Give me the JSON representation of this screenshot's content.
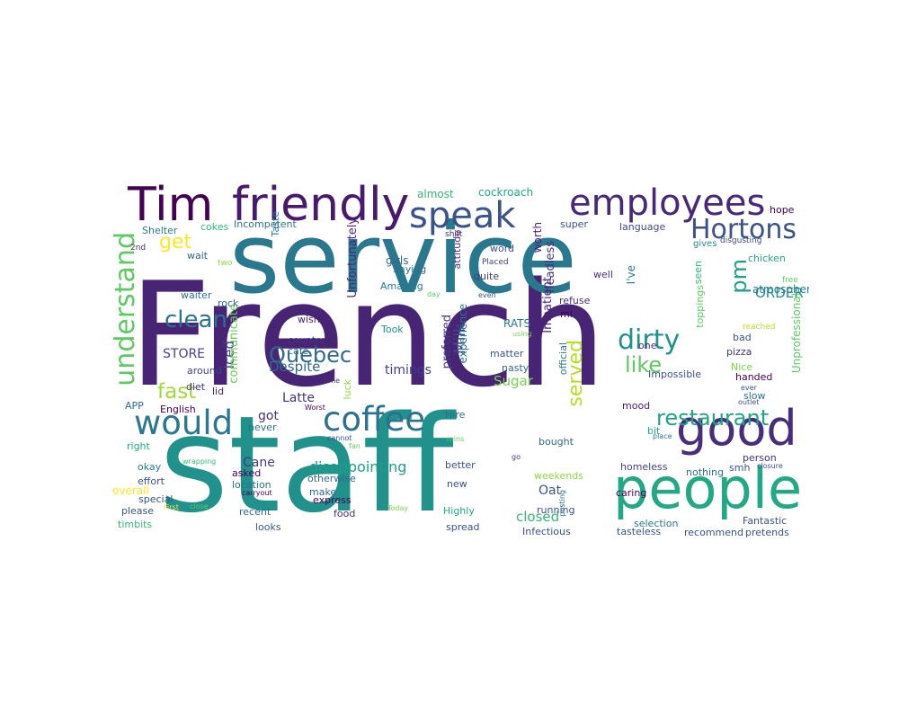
{
  "cloud": {
    "words": [
      {
        "text": "French",
        "color": "#482475"
      },
      {
        "text": "staff",
        "color": "#21918c"
      },
      {
        "text": "service",
        "color": "#2a788e"
      },
      {
        "text": "people",
        "color": "#22a884"
      },
      {
        "text": "Tim",
        "color": "#440154"
      },
      {
        "text": "friendly",
        "color": "#481a6c"
      },
      {
        "text": "good",
        "color": "#472d7b"
      },
      {
        "text": "employees",
        "color": "#482878"
      },
      {
        "text": "speak",
        "color": "#3b528b"
      },
      {
        "text": "coffee",
        "color": "#2c728e"
      },
      {
        "text": "would",
        "color": "#2a788e"
      },
      {
        "text": "Hortons",
        "color": "#3b528b"
      },
      {
        "text": "restaurant",
        "color": "#20a386"
      },
      {
        "text": "understand",
        "color": "#5ec962"
      },
      {
        "text": "dirty",
        "color": "#21918c"
      },
      {
        "text": "clean",
        "color": "#2c728e"
      },
      {
        "text": "Quebec",
        "color": "#31688e"
      },
      {
        "text": "like",
        "color": "#5ec962"
      },
      {
        "text": "fast",
        "color": "#a0da39"
      },
      {
        "text": "served",
        "color": "#b5de2b"
      },
      {
        "text": "get",
        "color": "#fde725"
      },
      {
        "text": "pm",
        "color": "#1fa187"
      },
      {
        "text": "disappointing",
        "color": "#1f9e89"
      },
      {
        "text": "ORDER",
        "color": "#21918c"
      },
      {
        "text": "Milk",
        "color": "#3e4989"
      },
      {
        "text": "Iced",
        "color": "#404688"
      },
      {
        "text": "STORE",
        "color": "#414487"
      },
      {
        "text": "Despite",
        "color": "#31688e"
      },
      {
        "text": "Sugar",
        "color": "#7ad151"
      },
      {
        "text": "timings",
        "color": "#433e85"
      },
      {
        "text": "Latte",
        "color": "#46327e"
      },
      {
        "text": "Oat",
        "color": "#3b528b"
      },
      {
        "text": "closed",
        "color": "#35b779"
      },
      {
        "text": "Cane",
        "color": "#453781"
      },
      {
        "text": "got",
        "color": "#46327e"
      },
      {
        "text": "atmosphere",
        "color": "#287c8e"
      },
      {
        "text": "Unprofessional",
        "color": "#5ec962"
      },
      {
        "text": "Unfortunately",
        "color": "#482878"
      },
      {
        "text": "communicate",
        "color": "#6ccd5a"
      },
      {
        "text": "preferred",
        "color": "#433e85"
      },
      {
        "text": "experience",
        "color": "#2c728e"
      },
      {
        "text": "Impatient",
        "color": "#482475"
      },
      {
        "text": "headless",
        "color": "#46337f"
      },
      {
        "text": "almost",
        "color": "#35b779"
      },
      {
        "text": "cockroach",
        "color": "#22a884"
      },
      {
        "text": "worth",
        "color": "#481f70"
      },
      {
        "text": "super",
        "color": "#3b528b"
      },
      {
        "text": "hope",
        "color": "#440154"
      },
      {
        "text": "Shelter",
        "color": "#2a788e"
      },
      {
        "text": "cokes",
        "color": "#35b779"
      },
      {
        "text": "Incompetent",
        "color": "#2c728e"
      },
      {
        "text": "attitude",
        "color": "#46327e"
      },
      {
        "text": "language",
        "color": "#3e4989"
      },
      {
        "text": "2nd",
        "color": "#472d7b"
      },
      {
        "text": "wait",
        "color": "#31688e"
      },
      {
        "text": "Taste",
        "color": "#2a788e"
      },
      {
        "text": "shift",
        "color": "#482878"
      },
      {
        "text": "word",
        "color": "#3b528b"
      },
      {
        "text": "gives",
        "color": "#25858e"
      },
      {
        "text": "disgusting",
        "color": "#3e4989"
      },
      {
        "text": "two",
        "color": "#90d743"
      },
      {
        "text": "girls",
        "color": "#31688e"
      },
      {
        "text": "Placed",
        "color": "#414487"
      },
      {
        "text": "seen",
        "color": "#35b779"
      },
      {
        "text": "chicken",
        "color": "#22a884"
      },
      {
        "text": "Saying",
        "color": "#2c728e"
      },
      {
        "text": "quite",
        "color": "#433e85"
      },
      {
        "text": "well",
        "color": "#472d7b"
      },
      {
        "text": "I've",
        "color": "#2a788e"
      },
      {
        "text": "free",
        "color": "#5ec962"
      },
      {
        "text": "waiter",
        "color": "#2c728e"
      },
      {
        "text": "Amazing",
        "color": "#2a788e"
      },
      {
        "text": "day",
        "color": "#5ec962"
      },
      {
        "text": "even",
        "color": "#3b528b"
      },
      {
        "text": "refuse",
        "color": "#46327e"
      },
      {
        "text": "rock",
        "color": "#31688e"
      },
      {
        "text": "ml",
        "color": "#440154"
      },
      {
        "text": "toppings",
        "color": "#5ec962"
      },
      {
        "text": "wish",
        "color": "#481a6c"
      },
      {
        "text": "RATS",
        "color": "#2a788e"
      },
      {
        "text": "reached",
        "color": "#b5de2b"
      },
      {
        "text": "Took",
        "color": "#21918c"
      },
      {
        "text": "using",
        "color": "#7ad151"
      },
      {
        "text": "one",
        "color": "#472d7b"
      },
      {
        "text": "bad",
        "color": "#3b528b"
      },
      {
        "text": "counter",
        "color": "#46327e"
      },
      {
        "text": "cafe",
        "color": "#2c728e"
      },
      {
        "text": "official",
        "color": "#2a788e"
      },
      {
        "text": "pizza",
        "color": "#46327e"
      },
      {
        "text": "matter",
        "color": "#3b528b"
      },
      {
        "text": "around",
        "color": "#414487"
      },
      {
        "text": "nasty",
        "color": "#31688e"
      },
      {
        "text": "Nice",
        "color": "#7ad151"
      },
      {
        "text": "Impossible",
        "color": "#3b528b"
      },
      {
        "text": "diet",
        "color": "#46327e"
      },
      {
        "text": "time",
        "color": "#46327e"
      },
      {
        "text": "handed",
        "color": "#440154"
      },
      {
        "text": "lid",
        "color": "#482878"
      },
      {
        "text": "luck",
        "color": "#90d743"
      },
      {
        "text": "ever",
        "color": "#3b528b"
      },
      {
        "text": "slow",
        "color": "#2c728e"
      },
      {
        "text": "APP",
        "color": "#31688e"
      },
      {
        "text": "English",
        "color": "#440154"
      },
      {
        "text": "Worst",
        "color": "#440154"
      },
      {
        "text": "outlet",
        "color": "#3b528b"
      },
      {
        "text": "mood",
        "color": "#481a6c"
      },
      {
        "text": "never",
        "color": "#2c728e"
      },
      {
        "text": "Hire",
        "color": "#2c728e"
      },
      {
        "text": "bit",
        "color": "#22a884"
      },
      {
        "text": "place",
        "color": "#2c728e"
      },
      {
        "text": "right",
        "color": "#22a884"
      },
      {
        "text": "cannot",
        "color": "#3b528b"
      },
      {
        "text": "mins",
        "color": "#5ec962"
      },
      {
        "text": "bought",
        "color": "#31688e"
      },
      {
        "text": "fan",
        "color": "#5ec962"
      },
      {
        "text": "wrapping",
        "color": "#35b779"
      },
      {
        "text": "go",
        "color": "#46327e"
      },
      {
        "text": "person",
        "color": "#46327e"
      },
      {
        "text": "smh",
        "color": "#3b528b"
      },
      {
        "text": "closure",
        "color": "#3b528b"
      },
      {
        "text": "okay",
        "color": "#2a788e"
      },
      {
        "text": "asked",
        "color": "#440154"
      },
      {
        "text": "better",
        "color": "#3b528b"
      },
      {
        "text": "weekends",
        "color": "#90d743"
      },
      {
        "text": "homeless",
        "color": "#414487"
      },
      {
        "text": "nothing",
        "color": "#2c728e"
      },
      {
        "text": "effort",
        "color": "#3b528b"
      },
      {
        "text": "location",
        "color": "#2c728e"
      },
      {
        "text": "otherwise",
        "color": "#31688e"
      },
      {
        "text": "overall",
        "color": "#fde725"
      },
      {
        "text": "carryout",
        "color": "#440154"
      },
      {
        "text": "make",
        "color": "#31688e"
      },
      {
        "text": "new",
        "color": "#3b528b"
      },
      {
        "text": "posting",
        "color": "#2c728e"
      },
      {
        "text": "caring",
        "color": "#440154"
      },
      {
        "text": "special",
        "color": "#3b528b"
      },
      {
        "text": "First",
        "color": "#fde725"
      },
      {
        "text": "close",
        "color": "#5ec962"
      },
      {
        "text": "express",
        "color": "#440154"
      },
      {
        "text": "running",
        "color": "#3b528b"
      },
      {
        "text": "please",
        "color": "#3b528b"
      },
      {
        "text": "recent",
        "color": "#31688e"
      },
      {
        "text": "food",
        "color": "#46327e"
      },
      {
        "text": "Today",
        "color": "#7ad151"
      },
      {
        "text": "Highly",
        "color": "#22a884"
      },
      {
        "text": "Fantastic",
        "color": "#3b528b"
      },
      {
        "text": "timbits",
        "color": "#35b779"
      },
      {
        "text": "looks",
        "color": "#3b528b"
      },
      {
        "text": "spread",
        "color": "#3b528b"
      },
      {
        "text": "Infectious",
        "color": "#3b528b"
      },
      {
        "text": "selection",
        "color": "#2a788e"
      },
      {
        "text": "pretends",
        "color": "#3b528b"
      },
      {
        "text": "tasteless",
        "color": "#3b528b"
      },
      {
        "text": "recommend",
        "color": "#3b528b"
      }
    ]
  }
}
